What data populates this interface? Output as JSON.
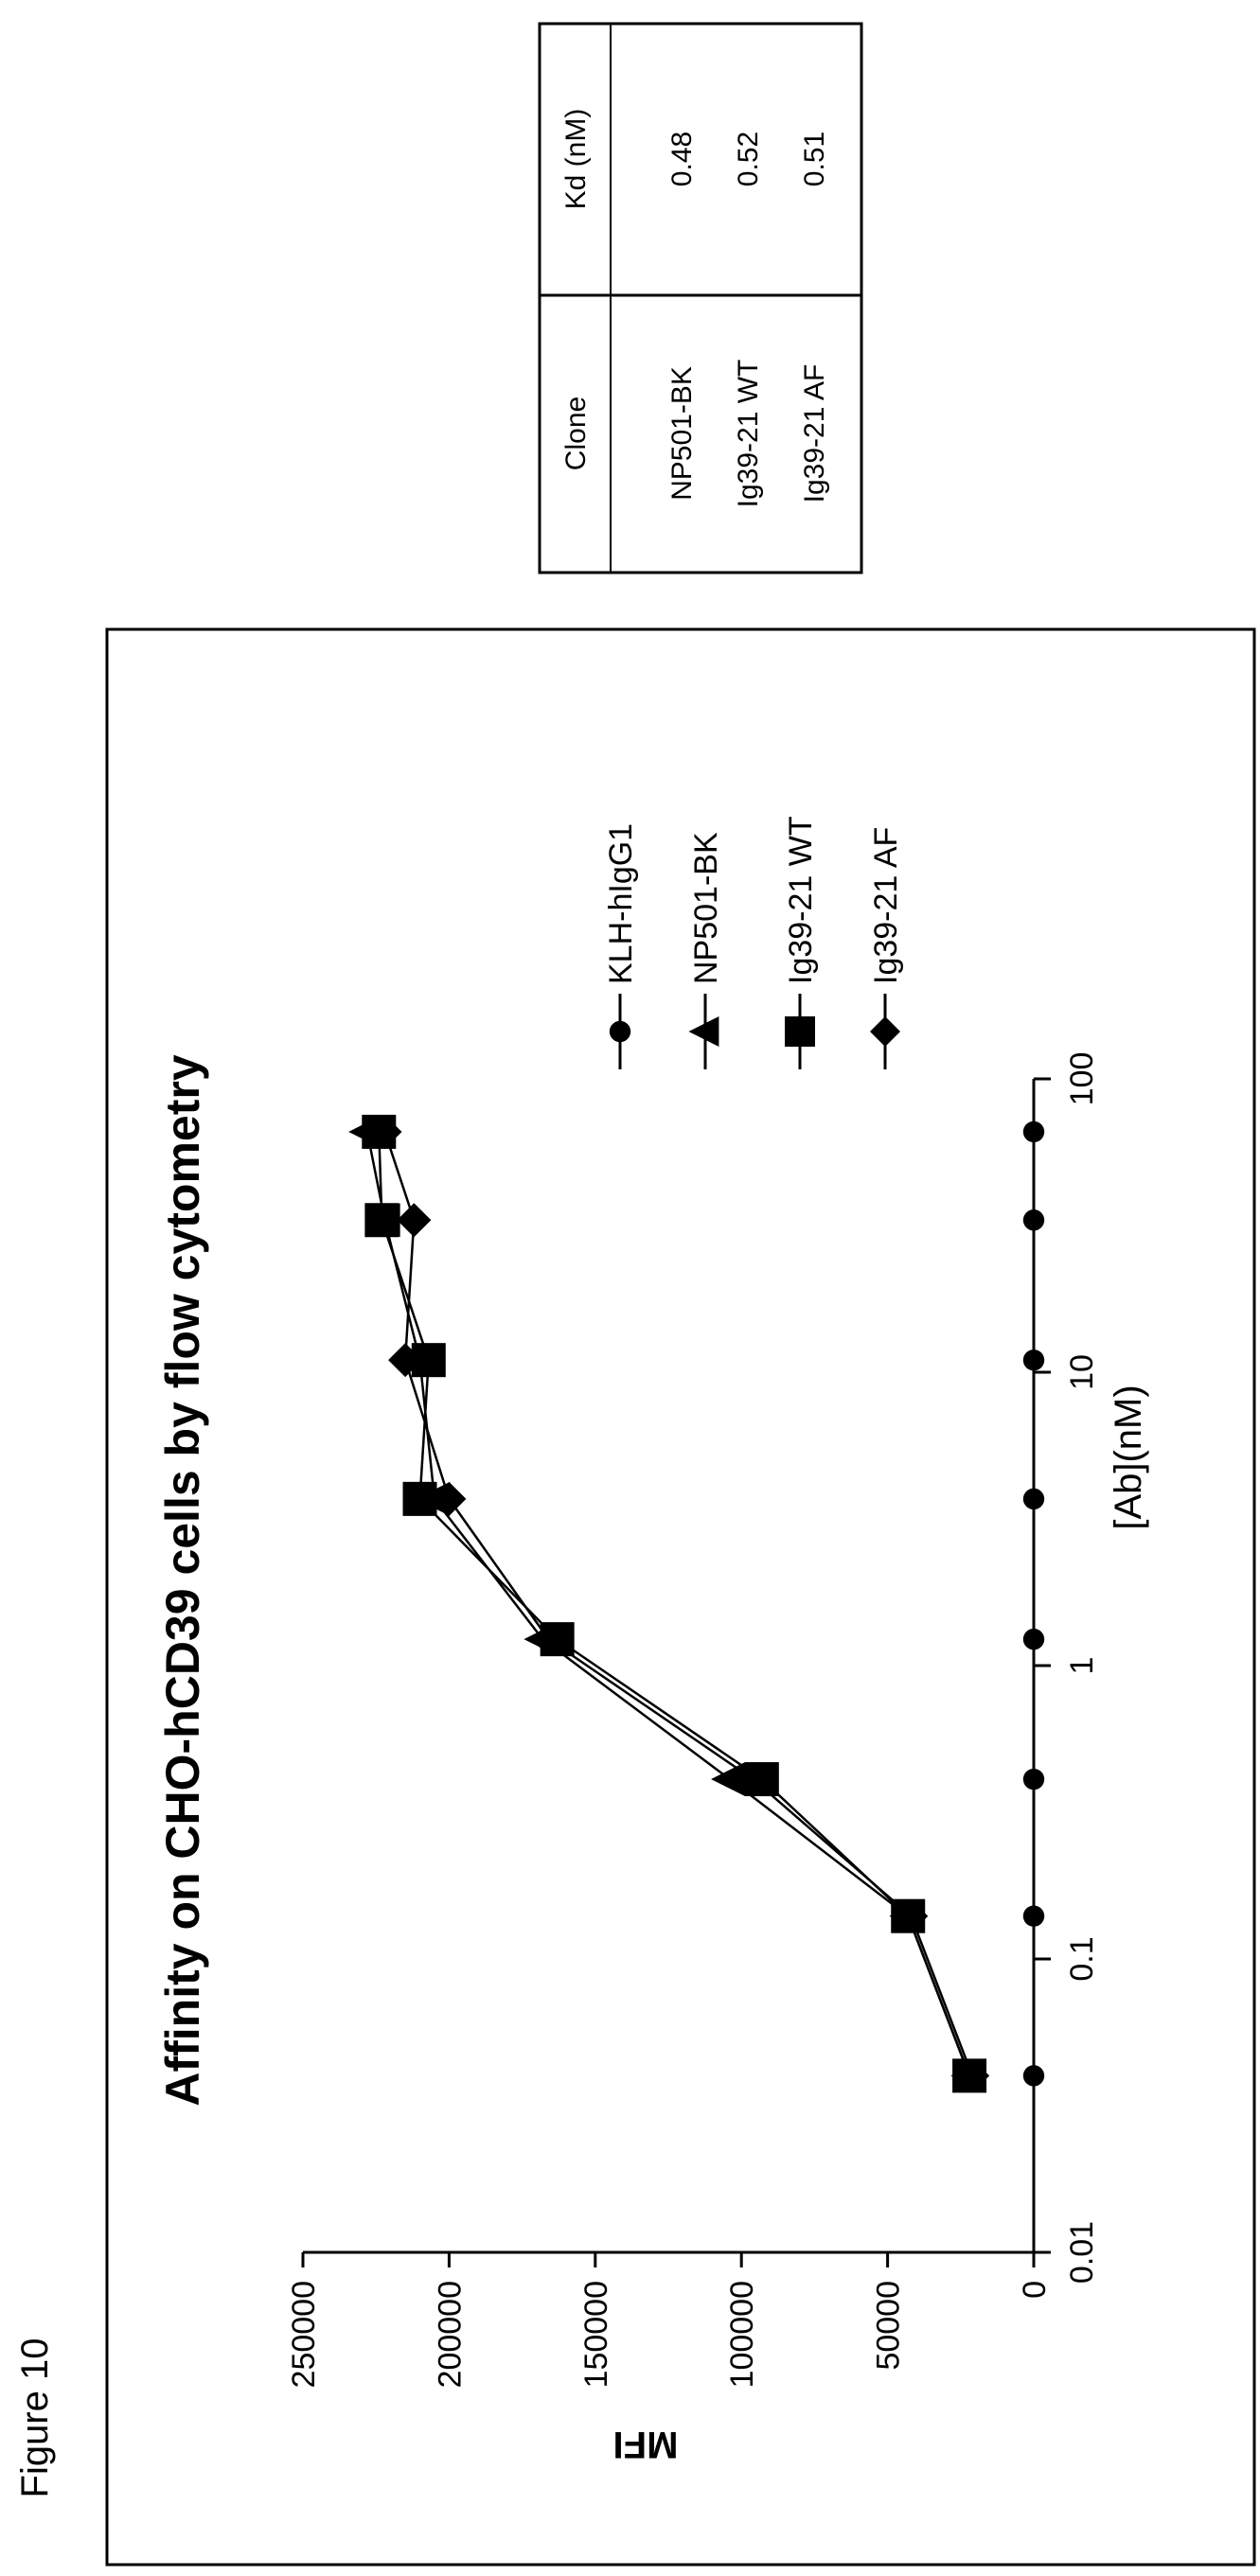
{
  "figure_label": "Figure 10",
  "chart_data": {
    "type": "line",
    "title": "Affinity on CHO-hCD39 cells by flow cytometry",
    "xlabel": "[Ab](nM)",
    "ylabel": "MFI",
    "xscale": "log",
    "xlim": [
      0.01,
      100
    ],
    "ylim": [
      0,
      250000
    ],
    "x_ticks": [
      "0.01",
      "0.1",
      "1",
      "10",
      "100"
    ],
    "y_ticks": [
      "0",
      "50000",
      "100000",
      "150000",
      "200000",
      "250000"
    ],
    "x": [
      0.04,
      0.14,
      0.41,
      1.23,
      3.7,
      11,
      33,
      66
    ],
    "legend_position": "right",
    "orientation": "figure rotated 90 degrees counter-clockwise on page",
    "series": [
      {
        "name": "KLH-hIgG1",
        "marker": "circle",
        "values": [
          0,
          0,
          0,
          0,
          0,
          0,
          0,
          0
        ]
      },
      {
        "name": "NP501-BK",
        "marker": "triangle",
        "values": [
          22000,
          43000,
          104000,
          168000,
          205000,
          210000,
          222000,
          228000
        ]
      },
      {
        "name": "Ig39-21 WT",
        "marker": "square",
        "values": [
          22000,
          43000,
          93000,
          163000,
          210000,
          207000,
          223000,
          224000
        ]
      },
      {
        "name": "Ig39-21 AF",
        "marker": "diamond",
        "values": [
          21000,
          42000,
          96000,
          166000,
          200000,
          215000,
          212000,
          222000
        ]
      }
    ]
  },
  "kd_table": {
    "headers": [
      "Clone",
      "Kd (nM)"
    ],
    "rows": [
      [
        "NP501-BK",
        "0.48"
      ],
      [
        "Ig39-21 WT",
        "0.52"
      ],
      [
        "Ig39-21 AF",
        "0.51"
      ]
    ]
  }
}
